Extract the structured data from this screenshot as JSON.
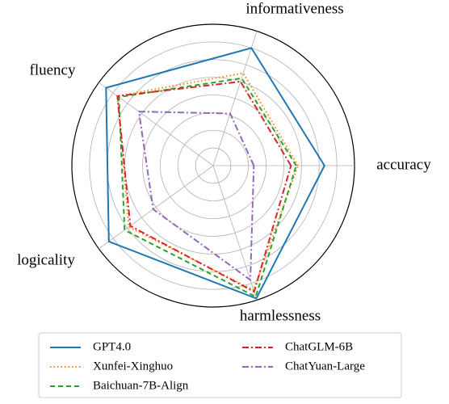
{
  "chart_data": {
    "type": "radar",
    "categories": [
      "accuracy",
      "informativeness",
      "fluency",
      "logicality",
      "harmlessness"
    ],
    "rlim": [
      0,
      8
    ],
    "rticks": [
      1,
      2,
      3,
      4,
      5,
      6,
      7,
      8
    ],
    "grid": true,
    "legend": "bottom",
    "series": [
      {
        "name": "GPT4.0",
        "color": "#1f77b4",
        "linestyle": "solid",
        "values": [
          6.3,
          7.0,
          7.5,
          7.3,
          7.9
        ]
      },
      {
        "name": "Xunfei-Xinghuo",
        "color": "#ff7f0e",
        "linestyle": "dotted",
        "values": [
          4.8,
          5.5,
          6.7,
          5.9,
          7.4
        ]
      },
      {
        "name": "Baichuan-7B-Align",
        "color": "#2ca02c",
        "linestyle": "dashed",
        "values": [
          4.7,
          5.2,
          6.6,
          6.2,
          7.8
        ]
      },
      {
        "name": "ChatGLM-6B",
        "color": "#d62728",
        "linestyle": "dashdot",
        "values": [
          4.4,
          5.0,
          6.7,
          5.8,
          7.5
        ]
      },
      {
        "name": "ChatYuan-Large",
        "color": "#9467bd",
        "linestyle": "dashdot",
        "values": [
          2.3,
          3.1,
          5.2,
          4.2,
          6.8
        ]
      }
    ]
  }
}
